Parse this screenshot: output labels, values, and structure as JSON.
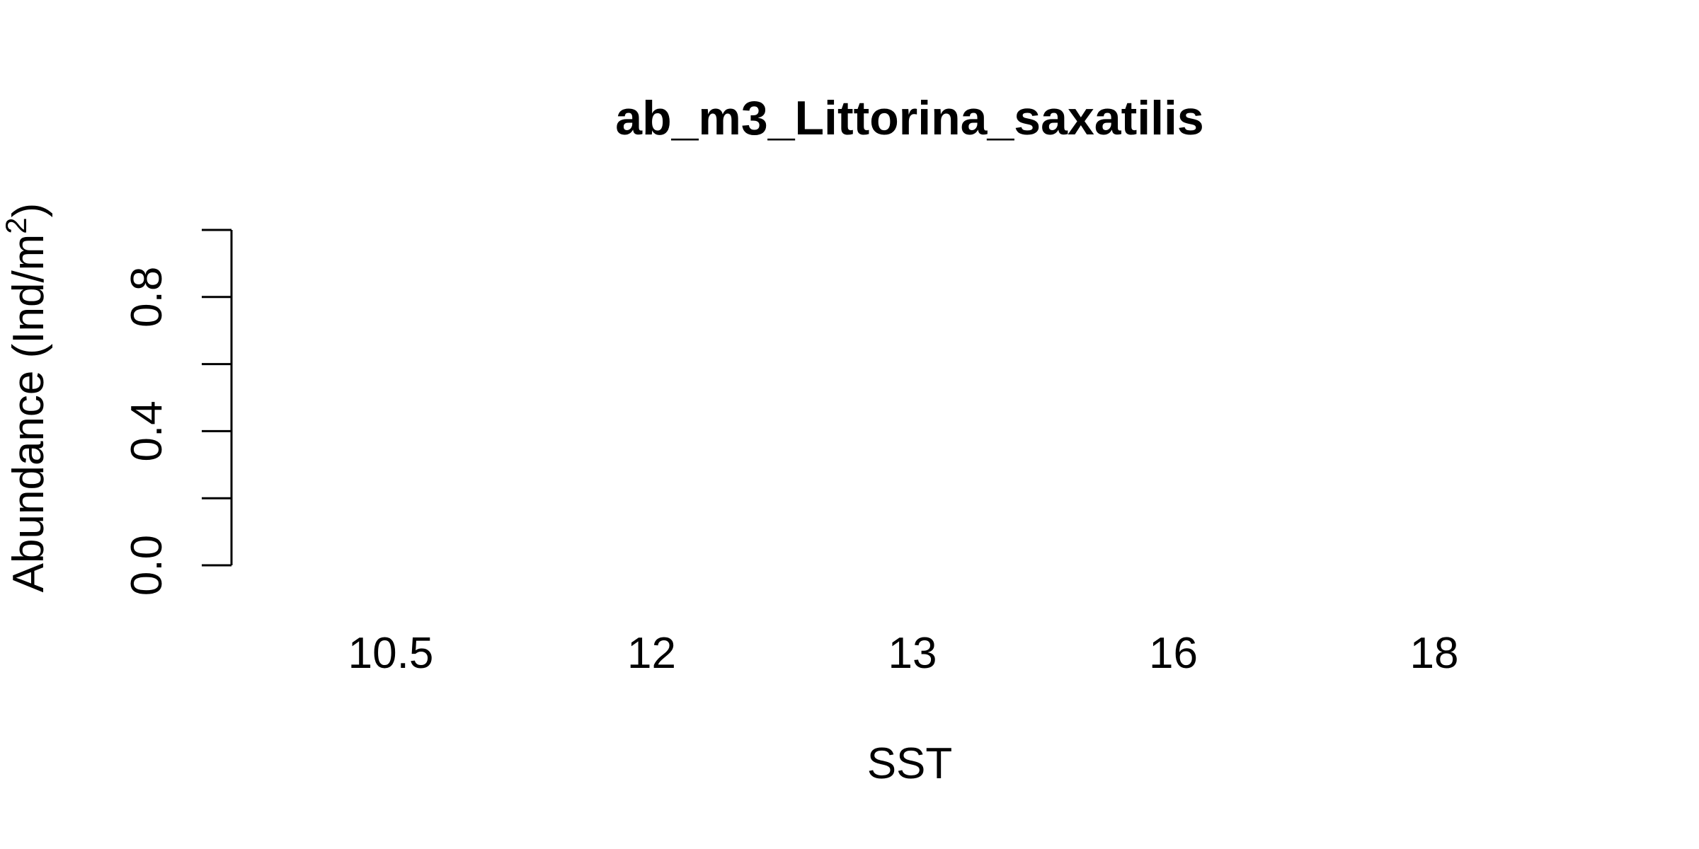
{
  "chart_data": {
    "type": "bar",
    "title": "ab_m3_Littorina_saxatilis",
    "xlabel": "SST",
    "ylabel": "Abundance (Ind/m",
    "ylabel_superscript": "2",
    "ylabel_suffix": ")",
    "categories": [
      "10.5",
      "12",
      "13",
      "16",
      "18"
    ],
    "values": [
      0,
      0,
      0,
      0,
      0
    ],
    "ylim": [
      0,
      1
    ],
    "y_ticks": [
      0.0,
      0.2,
      0.4,
      0.6,
      0.8,
      1.0
    ],
    "y_tick_labels": [
      {
        "value": 0.0,
        "label": "0.0"
      },
      {
        "value": 0.4,
        "label": "0.4"
      },
      {
        "value": 0.8,
        "label": "0.8"
      }
    ],
    "grid": false,
    "legend": "none",
    "colors": {
      "text": "#000000",
      "axis": "#000000",
      "background": "#ffffff"
    }
  }
}
